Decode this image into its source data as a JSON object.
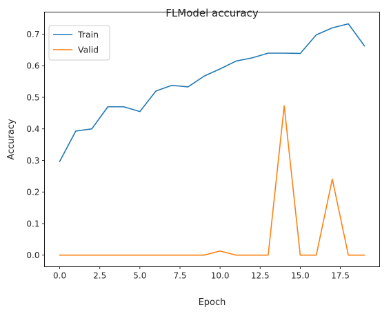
{
  "chart_data": {
    "type": "line",
    "title": "FLModel accuracy",
    "xlabel": "Epoch",
    "ylabel": "Accuracy",
    "x": [
      0,
      1,
      2,
      3,
      4,
      5,
      6,
      7,
      8,
      9,
      10,
      11,
      12,
      13,
      14,
      15,
      16,
      17,
      18,
      19
    ],
    "xlim": [
      -0.95,
      19.95
    ],
    "ylim": [
      -0.0367,
      0.7701
    ],
    "xticks": [
      0.0,
      2.5,
      5.0,
      7.5,
      10.0,
      12.5,
      15.0,
      17.5
    ],
    "xtick_labels": [
      "0.0",
      "2.5",
      "5.0",
      "7.5",
      "10.0",
      "12.5",
      "15.0",
      "17.5"
    ],
    "yticks": [
      0.0,
      0.1,
      0.2,
      0.3,
      0.4,
      0.5,
      0.6,
      0.7
    ],
    "ytick_labels": [
      "0.0",
      "0.1",
      "0.2",
      "0.3",
      "0.4",
      "0.5",
      "0.6",
      "0.7"
    ],
    "grid": false,
    "legend_position": "top-left",
    "series": [
      {
        "name": "Train",
        "color": "#1f77b4",
        "values": [
          0.297,
          0.393,
          0.4,
          0.47,
          0.47,
          0.455,
          0.52,
          0.538,
          0.533,
          0.567,
          0.59,
          0.615,
          0.625,
          0.64,
          0.64,
          0.639,
          0.698,
          0.72,
          0.733,
          0.663
        ]
      },
      {
        "name": "Valid",
        "color": "#ff7f0e",
        "values": [
          0.0,
          0.0,
          0.0,
          0.0,
          0.0,
          0.0,
          0.0,
          0.0,
          0.0,
          0.0,
          0.013,
          0.0,
          0.0,
          0.0,
          0.473,
          0.0,
          0.0,
          0.241,
          0.0,
          0.0
        ]
      }
    ]
  }
}
